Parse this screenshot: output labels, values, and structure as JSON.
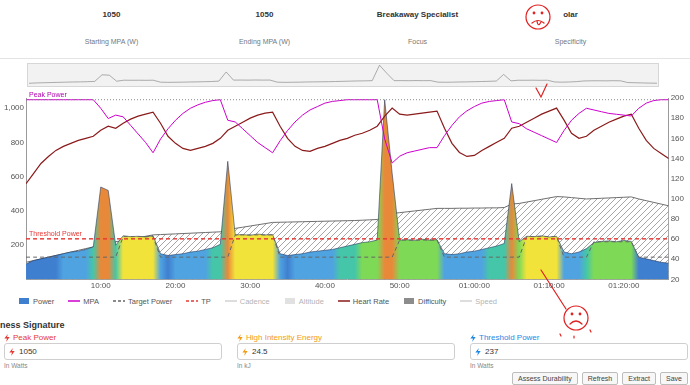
{
  "header": {
    "fields": [
      {
        "value": 1050,
        "label": "Starting MPA (W)"
      },
      {
        "value": 1050,
        "label": "Ending MPA (W)"
      },
      {
        "value": "Breakaway Specialist",
        "label": "Focus"
      },
      {
        "value": "olar",
        "label": "Specificity"
      }
    ]
  },
  "chart_data": {
    "type": "line",
    "x": [
      0,
      1,
      2,
      3,
      4,
      5,
      6,
      7,
      8,
      9,
      10,
      11,
      12,
      13,
      14,
      15,
      16,
      17,
      18,
      19,
      20,
      21,
      22,
      23,
      24,
      25,
      26,
      27,
      28,
      29,
      30,
      31,
      32,
      33,
      34,
      35,
      36,
      37,
      38,
      39,
      40,
      41,
      42,
      43,
      44,
      45,
      46,
      47,
      48,
      49,
      50,
      51,
      52,
      53,
      54,
      55,
      56,
      57,
      58,
      59,
      60,
      61,
      62,
      63,
      64,
      65,
      66,
      67,
      68,
      69,
      70,
      71,
      72,
      73,
      74,
      75,
      76,
      77,
      78,
      79,
      80,
      81,
      82,
      83,
      84,
      85,
      86
    ],
    "xlim": [
      0,
      86
    ],
    "xticks": [
      {
        "value": 10,
        "label": "10:00"
      },
      {
        "value": 20,
        "label": "20:00"
      },
      {
        "value": 30,
        "label": "30:00"
      },
      {
        "value": 40,
        "label": "40:00"
      },
      {
        "value": 50,
        "label": "50:00"
      },
      {
        "value": 60,
        "label": "01:00:00"
      },
      {
        "value": 70,
        "label": "01:10:00"
      },
      {
        "value": 80,
        "label": "01:20:00"
      }
    ],
    "ylim": [
      0,
      1060
    ],
    "yticks": [
      200,
      400,
      600,
      800,
      {
        "value": 1000,
        "label": "1,000"
      }
    ],
    "y2lim": [
      20,
      200
    ],
    "y2ticks": [
      20,
      40,
      60,
      80,
      100,
      120,
      140,
      160,
      180,
      200
    ],
    "grid": false,
    "legend": "bottom",
    "annotations": [
      {
        "label": "Peak Power",
        "y": 1050,
        "color": "#b000b0",
        "line_style": "dotted"
      },
      {
        "label": "Threshold Power",
        "y": 237,
        "color": "#e53935",
        "line_style": "dashed"
      }
    ],
    "series": [
      {
        "name": "Power",
        "type": "area",
        "color": "#3f7fd0",
        "values": [
          90,
          110,
          120,
          130,
          140,
          150,
          160,
          165,
          175,
          190,
          540,
          520,
          200,
          255,
          250,
          252,
          248,
          255,
          150,
          140,
          145,
          150,
          160,
          165,
          175,
          185,
          205,
          690,
          260,
          262,
          258,
          265,
          260,
          262,
          150,
          140,
          145,
          150,
          160,
          165,
          170,
          175,
          185,
          195,
          205,
          215,
          220,
          230,
          1050,
          620,
          230,
          232,
          228,
          235,
          230,
          232,
          150,
          145,
          150,
          160,
          165,
          175,
          185,
          195,
          210,
          560,
          220,
          252,
          250,
          255,
          248,
          252,
          160,
          150,
          160,
          180,
          215,
          222,
          225,
          220,
          228,
          222,
          130,
          120,
          110,
          100,
          95
        ]
      },
      {
        "name": "MPA",
        "type": "line",
        "color": "#cc00cc",
        "values": [
          1050,
          1050,
          1050,
          1050,
          1050,
          1050,
          1050,
          1050,
          1050,
          1050,
          1000,
          940,
          960,
          950,
          900,
          850,
          800,
          740,
          820,
          880,
          930,
          970,
          1000,
          1020,
          1035,
          1045,
          1050,
          930,
          920,
          880,
          840,
          800,
          770,
          740,
          810,
          870,
          920,
          960,
          990,
          1010,
          1030,
          1040,
          1045,
          1050,
          1050,
          1050,
          1050,
          1050,
          820,
          680,
          720,
          740,
          750,
          760,
          770,
          770,
          840,
          900,
          950,
          985,
          1010,
          1030,
          1040,
          1045,
          1050,
          920,
          910,
          880,
          860,
          840,
          820,
          800,
          870,
          930,
          970,
          1000,
          990,
          980,
          970,
          965,
          960,
          955,
          1000,
          1030,
          1045,
          1050,
          1050
        ]
      },
      {
        "name": "Target Power",
        "type": "line",
        "color": "#666666",
        "line_style": "dashed",
        "values": [
          130,
          130,
          130,
          130,
          130,
          130,
          130,
          130,
          130,
          130,
          130,
          130,
          130,
          250,
          250,
          250,
          250,
          250,
          130,
          130,
          130,
          130,
          130,
          130,
          130,
          130,
          130,
          130,
          260,
          260,
          260,
          260,
          260,
          260,
          130,
          130,
          130,
          130,
          130,
          130,
          130,
          130,
          130,
          130,
          130,
          130,
          130,
          130,
          130,
          130,
          230,
          230,
          230,
          230,
          230,
          230,
          130,
          130,
          130,
          130,
          130,
          130,
          130,
          130,
          130,
          130,
          130,
          250,
          250,
          250,
          250,
          250,
          130,
          130,
          130,
          130,
          220,
          220,
          220,
          220,
          220,
          220,
          130,
          130,
          130,
          130,
          130
        ]
      },
      {
        "name": "TP",
        "type": "line",
        "color": "#e53935",
        "line_style": "dashed",
        "values": [
          237,
          237,
          237,
          237,
          237,
          237,
          237,
          237,
          237,
          237,
          237,
          237,
          237,
          237,
          237,
          237,
          237,
          237,
          237,
          237,
          237,
          237,
          237,
          237,
          237,
          237,
          237,
          237,
          237,
          237,
          237,
          237,
          237,
          237,
          237,
          237,
          237,
          237,
          237,
          237,
          237,
          237,
          237,
          237,
          237,
          237,
          237,
          237,
          237,
          237,
          237,
          237,
          237,
          237,
          237,
          237,
          237,
          237,
          237,
          237,
          237,
          237,
          237,
          237,
          237,
          237,
          237,
          237,
          237,
          237,
          237,
          237,
          237,
          237,
          237,
          237,
          237,
          237,
          237,
          237,
          237,
          237,
          237,
          237,
          237,
          237,
          237
        ]
      },
      {
        "name": "Cadence",
        "type": "line",
        "color": "#9e9e9e",
        "values": [
          null,
          null,
          null,
          null,
          null,
          null,
          null,
          null,
          null,
          null,
          null,
          null,
          null,
          null,
          null,
          null,
          null,
          null,
          null,
          null,
          null,
          null,
          null,
          null,
          null,
          null,
          null,
          null,
          null,
          null,
          null,
          null,
          null,
          null,
          null,
          null,
          null,
          null,
          null,
          null,
          null,
          null,
          null,
          null,
          null,
          null,
          null,
          null,
          null,
          null,
          null,
          null,
          null,
          null,
          null,
          null,
          null,
          null,
          null,
          null,
          null,
          null,
          null,
          null,
          null,
          null,
          null,
          null,
          null,
          null,
          null,
          null,
          null,
          null,
          null,
          null,
          null,
          null,
          null,
          null,
          null,
          null,
          null,
          null,
          null,
          null,
          null
        ]
      },
      {
        "name": "Altitude",
        "type": "area",
        "color": "#bdbdbd",
        "values": [
          null,
          null,
          null,
          null,
          null,
          null,
          null,
          null,
          null,
          null,
          null,
          null,
          null,
          null,
          null,
          null,
          null,
          null,
          null,
          null,
          null,
          null,
          null,
          null,
          null,
          null,
          null,
          null,
          null,
          null,
          null,
          null,
          null,
          null,
          null,
          null,
          null,
          null,
          null,
          null,
          null,
          null,
          null,
          null,
          null,
          null,
          null,
          null,
          null,
          null,
          null,
          null,
          null,
          null,
          null,
          null,
          null,
          null,
          null,
          null,
          null,
          null,
          null,
          null,
          null,
          null,
          null,
          null,
          null,
          null,
          null,
          null,
          null,
          null,
          null,
          null,
          null,
          null,
          null,
          null,
          null,
          null,
          null,
          null,
          null,
          null,
          null
        ]
      },
      {
        "name": "Heart Rate",
        "type": "line",
        "color": "#8b1a1a",
        "axis": "y2",
        "values": [
          115,
          125,
          135,
          142,
          148,
          152,
          155,
          158,
          160,
          162,
          168,
          172,
          170,
          175,
          179,
          182,
          184,
          186,
          175,
          162,
          155,
          150,
          148,
          150,
          152,
          155,
          160,
          168,
          172,
          176,
          180,
          183,
          185,
          186,
          172,
          160,
          152,
          148,
          147,
          150,
          152,
          155,
          158,
          160,
          163,
          165,
          168,
          172,
          182,
          190,
          184,
          183,
          184,
          185,
          186,
          187,
          170,
          155,
          146,
          142,
          143,
          148,
          152,
          156,
          160,
          170,
          172,
          176,
          180,
          184,
          187,
          190,
          178,
          165,
          160,
          162,
          168,
          172,
          176,
          179,
          182,
          184,
          170,
          158,
          150,
          145,
          140
        ]
      },
      {
        "name": "Difficulty",
        "type": "area",
        "color": "#8c8c8c",
        "values": [
          100,
          110,
          120,
          130,
          140,
          150,
          160,
          170,
          180,
          190,
          205,
          215,
          220,
          228,
          236,
          244,
          252,
          260,
          262,
          264,
          266,
          268,
          270,
          272,
          274,
          276,
          278,
          292,
          298,
          305,
          312,
          319,
          326,
          333,
          334,
          335,
          336,
          337,
          338,
          339,
          340,
          341,
          342,
          343,
          344,
          346,
          348,
          350,
          372,
          385,
          390,
          395,
          400,
          405,
          410,
          415,
          415,
          415,
          416,
          416,
          417,
          417,
          418,
          418,
          420,
          440,
          444,
          452,
          460,
          468,
          476,
          484,
          482,
          478,
          474,
          470,
          472,
          474,
          476,
          478,
          480,
          482,
          470,
          460,
          450,
          440,
          430
        ]
      },
      {
        "name": "Speed",
        "type": "line",
        "color": "#9e9e9e",
        "values": [
          null,
          null,
          null,
          null,
          null,
          null,
          null,
          null,
          null,
          null,
          null,
          null,
          null,
          null,
          null,
          null,
          null,
          null,
          null,
          null,
          null,
          null,
          null,
          null,
          null,
          null,
          null,
          null,
          null,
          null,
          null,
          null,
          null,
          null,
          null,
          null,
          null,
          null,
          null,
          null,
          null,
          null,
          null,
          null,
          null,
          null,
          null,
          null,
          null,
          null,
          null,
          null,
          null,
          null,
          null,
          null,
          null,
          null,
          null,
          null,
          null,
          null,
          null,
          null,
          null,
          null,
          null,
          null,
          null,
          null,
          null,
          null,
          null,
          null,
          null,
          null,
          null,
          null,
          null,
          null,
          null,
          null,
          null,
          null,
          null,
          null,
          null
        ]
      }
    ]
  },
  "summary": {
    "title": "ness Signature",
    "fields": [
      {
        "label": "Peak Power",
        "value": 1050,
        "unit": "In Watts",
        "color": "#e53935"
      },
      {
        "label": "High Intensity Energy",
        "value": 24.5,
        "unit": "In kJ",
        "color": "#f39c12"
      },
      {
        "label": "Threshold Power",
        "value": 237,
        "unit": "In Watts",
        "color": "#1e88e5"
      }
    ]
  },
  "buttons": [
    "Assess Durability",
    "Refresh",
    "Extract",
    "Save"
  ]
}
